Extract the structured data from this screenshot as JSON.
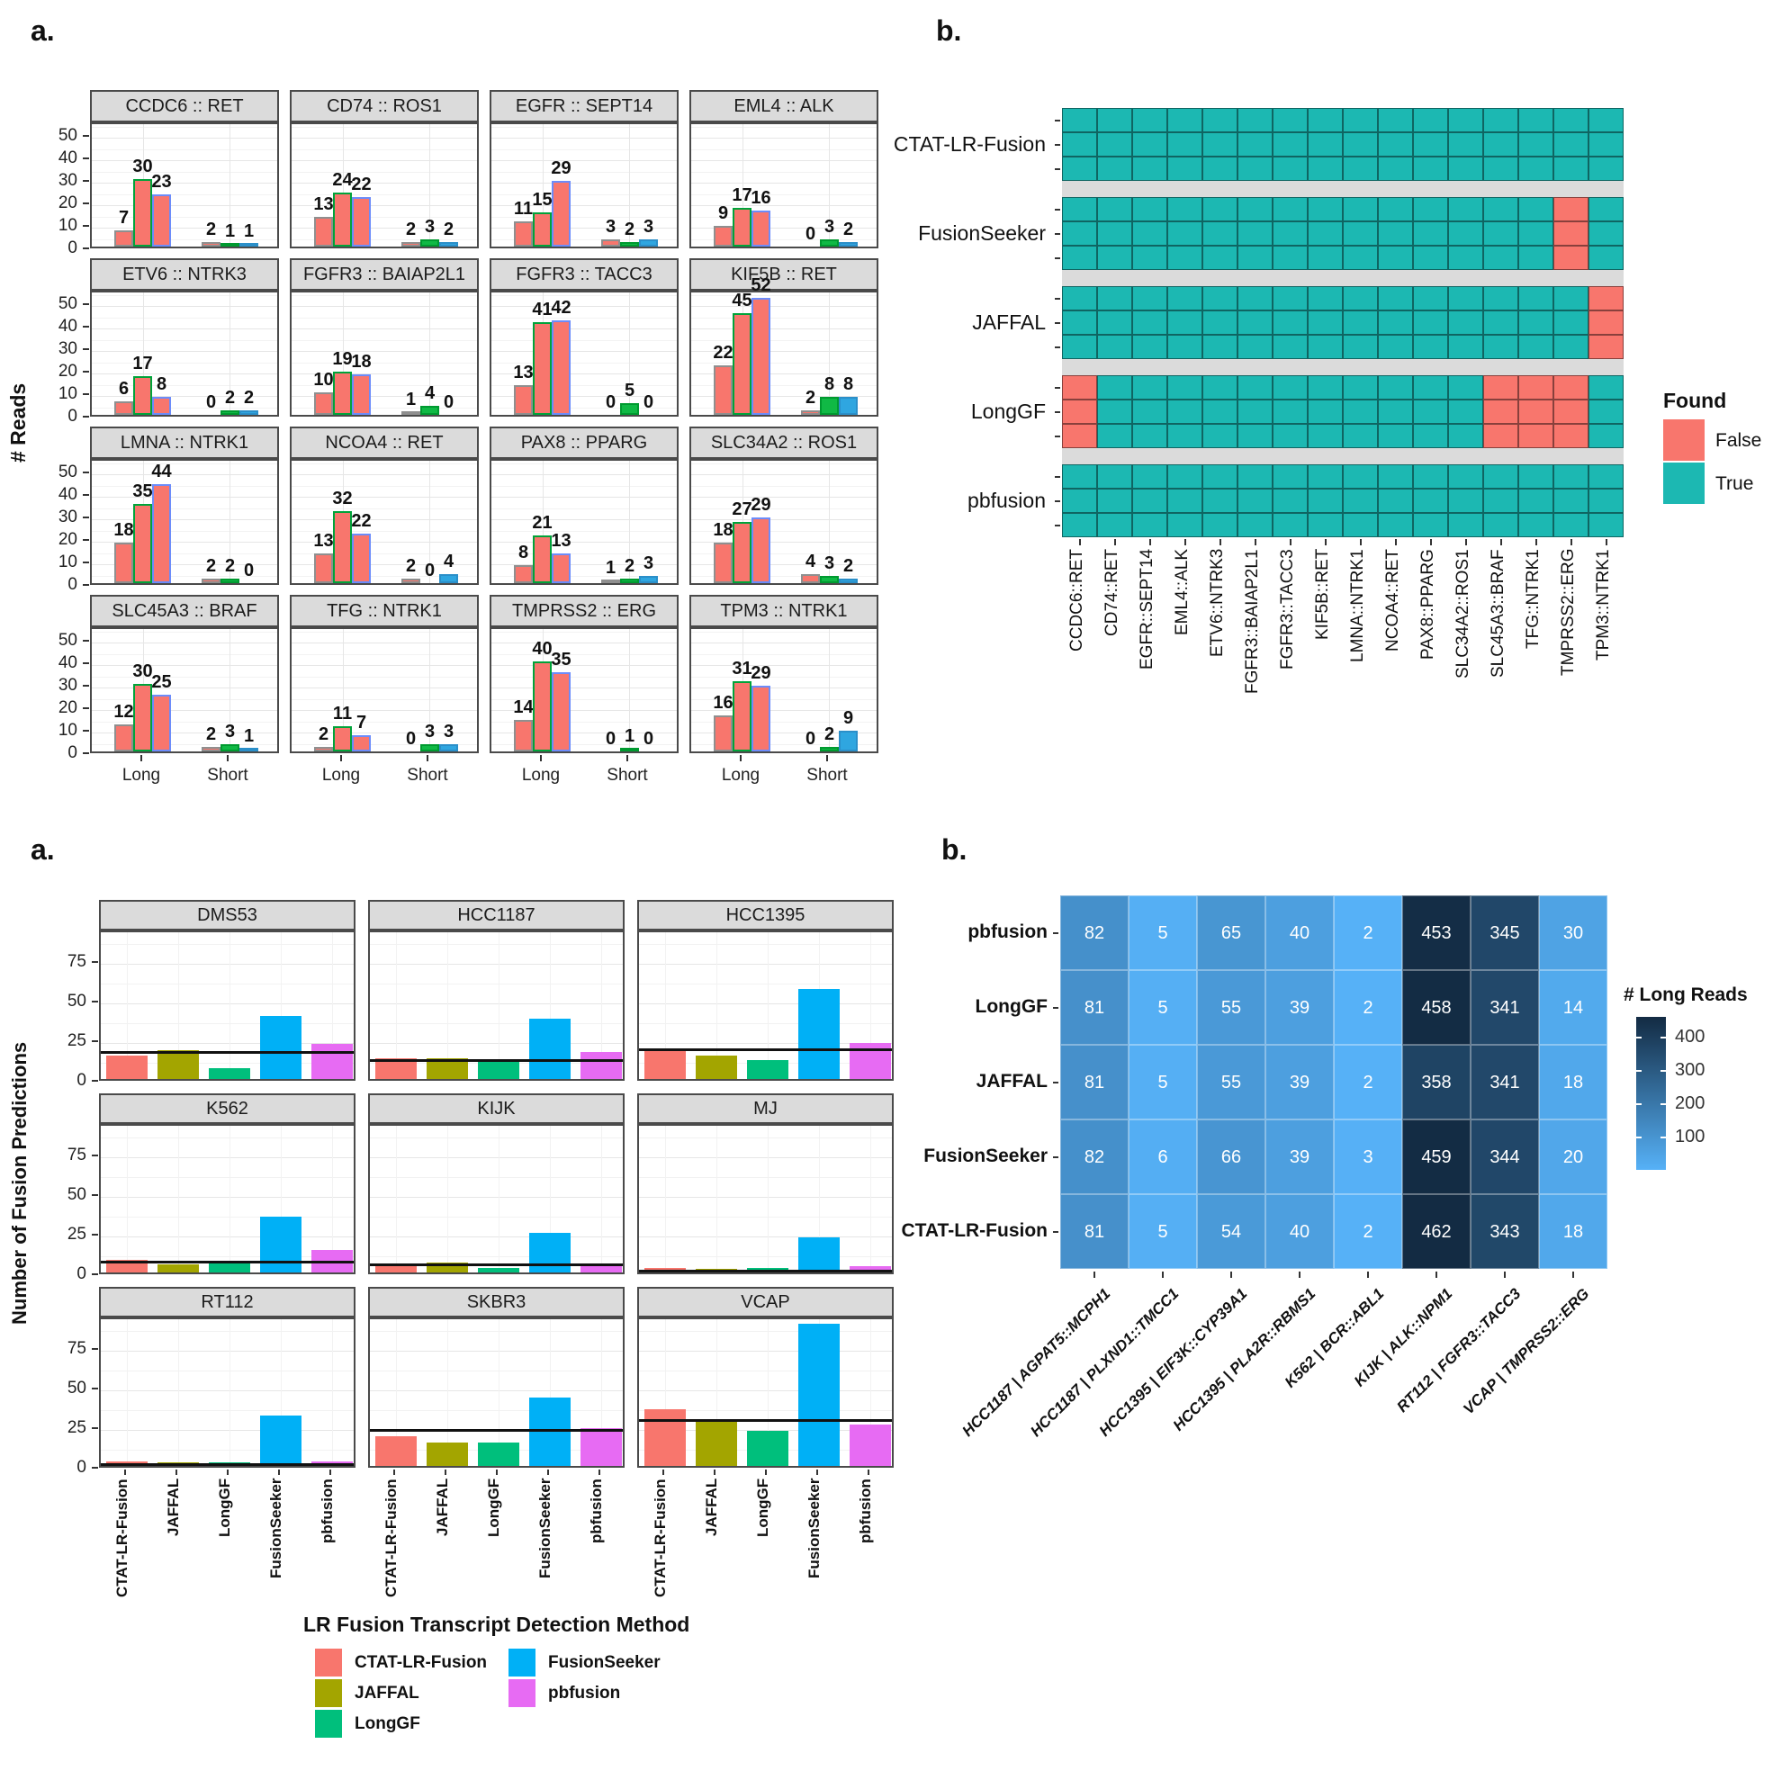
{
  "panels": {
    "top_left_label": "a.",
    "top_right_label": "b.",
    "bottom_left_label": "a.",
    "bottom_right_label": "b."
  },
  "chart_data": [
    {
      "id": "reads_per_fusion",
      "type": "bar",
      "ylabel": "# Reads",
      "yticks": [
        0,
        10,
        20,
        30,
        40,
        50
      ],
      "ylim": [
        0,
        56
      ],
      "x_groups": [
        "Long",
        "Short"
      ],
      "bars_per_group": 3,
      "series_style": {
        "long_fill": "#F8766D",
        "long_outlines": [
          "#8F8F8F",
          "#00A33A",
          "#6C8CFA"
        ],
        "short_fills": [
          "#F8766D",
          "#10B945",
          "#2FA6E0"
        ],
        "short_outlines": [
          "#8F8F8F",
          "#009A30",
          "#2B8FC9"
        ]
      },
      "facets": [
        {
          "title": "CCDC6 :: RET",
          "long": [
            7,
            30,
            23
          ],
          "short": [
            2,
            1,
            1
          ]
        },
        {
          "title": "CD74 :: ROS1",
          "long": [
            13,
            24,
            22
          ],
          "short": [
            2,
            3,
            2
          ]
        },
        {
          "title": "EGFR :: SEPT14",
          "long": [
            11,
            15,
            29
          ],
          "short": [
            3,
            2,
            3
          ]
        },
        {
          "title": "EML4 :: ALK",
          "long": [
            9,
            17,
            16
          ],
          "short": [
            0,
            3,
            2
          ]
        },
        {
          "title": "ETV6 :: NTRK3",
          "long": [
            6,
            17,
            8
          ],
          "short": [
            0,
            2,
            2
          ]
        },
        {
          "title": "FGFR3 :: BAIAP2L1",
          "long": [
            10,
            19,
            18
          ],
          "short": [
            1,
            4,
            0
          ]
        },
        {
          "title": "FGFR3 :: TACC3",
          "long": [
            13,
            41,
            42
          ],
          "short": [
            0,
            5,
            0
          ]
        },
        {
          "title": "KIF5B :: RET",
          "long": [
            22,
            45,
            52
          ],
          "short": [
            2,
            8,
            8
          ]
        },
        {
          "title": "LMNA :: NTRK1",
          "long": [
            18,
            35,
            44
          ],
          "short": [
            2,
            2,
            0
          ]
        },
        {
          "title": "NCOA4 :: RET",
          "long": [
            13,
            32,
            22
          ],
          "short": [
            2,
            0,
            4
          ]
        },
        {
          "title": "PAX8 :: PPARG",
          "long": [
            8,
            21,
            13
          ],
          "short": [
            1,
            2,
            3
          ]
        },
        {
          "title": "SLC34A2 :: ROS1",
          "long": [
            18,
            27,
            29
          ],
          "short": [
            4,
            3,
            2
          ]
        },
        {
          "title": "SLC45A3 :: BRAF",
          "long": [
            12,
            30,
            25
          ],
          "short": [
            2,
            3,
            1
          ]
        },
        {
          "title": "TFG :: NTRK1",
          "long": [
            2,
            11,
            7
          ],
          "short": [
            0,
            3,
            3
          ]
        },
        {
          "title": "TMPRSS2 :: ERG",
          "long": [
            14,
            40,
            35
          ],
          "short": [
            0,
            1,
            0
          ]
        },
        {
          "title": "TPM3 :: NTRK1",
          "long": [
            16,
            31,
            29
          ],
          "short": [
            0,
            2,
            9
          ]
        }
      ]
    },
    {
      "id": "fusion_found",
      "type": "heatmap",
      "legend": {
        "title": "Found",
        "entries": [
          {
            "label": "False",
            "color": "#F8766D"
          },
          {
            "label": "True",
            "color": "#1CB8B2"
          }
        ]
      },
      "rows": [
        "CTAT-LR-Fusion",
        "FusionSeeker",
        "JAFFAL",
        "LongGF",
        "pbfusion"
      ],
      "subrows_per_method": 3,
      "columns": [
        "CCDC6::RET",
        "CD74::RET",
        "EGFR::SEPT14",
        "EML4::ALK",
        "ETV6::NTRK3",
        "FGFR3::BAIAP2L1",
        "FGFR3::TACC3",
        "KIF5B::RET",
        "LMNA::NTRK1",
        "NCOA4::RET",
        "PAX8::PPARG",
        "SLC34A2::ROS1",
        "SLC45A3::BRAF",
        "TFG::NTRK1",
        "TMPRSS2::ERG",
        "TPM3::NTRK1"
      ],
      "false_cells": [
        {
          "row": "FusionSeeker",
          "column": "TMPRSS2::ERG"
        },
        {
          "row": "JAFFAL",
          "column": "TPM3::NTRK1"
        },
        {
          "row": "LongGF",
          "column": "CCDC6::RET"
        },
        {
          "row": "LongGF",
          "column": "SLC45A3::BRAF"
        },
        {
          "row": "LongGF",
          "column": "TFG::NTRK1"
        },
        {
          "row": "LongGF",
          "column": "TMPRSS2::ERG"
        }
      ]
    },
    {
      "id": "fusion_predictions",
      "type": "bar",
      "ylabel": "Number of Fusion Predictions",
      "yticks": [
        0,
        25,
        50,
        75
      ],
      "ylim": [
        0,
        95
      ],
      "methods": [
        "CTAT-LR-Fusion",
        "JAFFAL",
        "LongGF",
        "FusionSeeker",
        "pbfusion"
      ],
      "method_colors": {
        "CTAT-LR-Fusion": "#F8766D",
        "JAFFAL": "#A3A500",
        "LongGF": "#00BF7C",
        "FusionSeeker": "#00B0F6",
        "pbfusion": "#E76BF3"
      },
      "legend_title": "LR Fusion Transcript Detection Method",
      "facets": [
        {
          "title": "DMS53",
          "values": [
            15,
            18,
            7,
            40,
            22
          ],
          "hline": 19
        },
        {
          "title": "HCC1187",
          "values": [
            13,
            13,
            11,
            38,
            17
          ],
          "hline": 14
        },
        {
          "title": "HCC1395",
          "values": [
            19,
            15,
            12,
            57,
            23
          ],
          "hline": 21
        },
        {
          "title": "K562",
          "values": [
            8,
            5,
            6,
            35,
            14
          ],
          "hline": 9
        },
        {
          "title": "KIJK",
          "values": [
            4,
            6,
            3,
            25,
            5
          ],
          "hline": 7
        },
        {
          "title": "MJ",
          "values": [
            3,
            2,
            3,
            22,
            4
          ],
          "hline": 3
        },
        {
          "title": "RT112",
          "values": [
            3,
            2,
            2,
            32,
            3
          ],
          "hline": 3
        },
        {
          "title": "SKBR3",
          "values": [
            19,
            15,
            15,
            43,
            24
          ],
          "hline": 25
        },
        {
          "title": "VCAP",
          "values": [
            36,
            28,
            22,
            90,
            26
          ],
          "hline": 31
        }
      ]
    },
    {
      "id": "long_reads_support",
      "type": "heatmap",
      "legend": {
        "title": "# Long Reads",
        "ticks": [
          400,
          300,
          200,
          100
        ],
        "low_color": "#56B1F7",
        "high_color": "#132B43",
        "domain": [
          2,
          462
        ]
      },
      "rows": [
        "pbfusion",
        "LongGF",
        "JAFFAL",
        "FusionSeeker",
        "CTAT-LR-Fusion"
      ],
      "columns": [
        "HCC1187 | AGPAT5::MCPH1",
        "HCC1187 | PLXND1::TMCC1",
        "HCC1395 | EIF3K::CYP39A1",
        "HCC1395 | PLA2R::RBMS1",
        "K562 | BCR::ABL1",
        "KIJK | ALK::NPM1",
        "RT112 | FGFR3::TACC3",
        "VCAP | TMPRSS2::ERG"
      ],
      "values": [
        [
          82,
          5,
          65,
          40,
          2,
          453,
          345,
          30
        ],
        [
          81,
          5,
          55,
          39,
          2,
          458,
          341,
          14
        ],
        [
          81,
          5,
          55,
          39,
          2,
          358,
          341,
          18
        ],
        [
          82,
          6,
          66,
          39,
          3,
          459,
          344,
          20
        ],
        [
          81,
          5,
          54,
          40,
          2,
          462,
          343,
          18
        ]
      ]
    }
  ],
  "colors": {
    "strip_bg": "#DBDBDB",
    "border": "#4A4A4A",
    "grid_major": "#E6E6E6",
    "grid_minor": "#F2F2F2",
    "gap_band": "#DBDBDB",
    "hline": "#111111",
    "tick": "#333333"
  }
}
